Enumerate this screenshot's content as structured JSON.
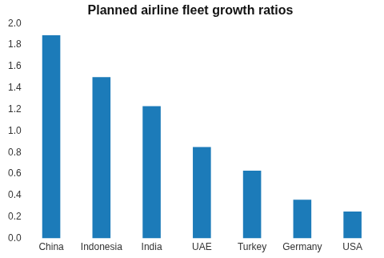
{
  "chart_data": {
    "type": "bar",
    "title": "Planned airline fleet growth ratios",
    "categories": [
      "China",
      "Indonesia",
      "India",
      "UAE",
      "Turkey",
      "Germany",
      "USA"
    ],
    "values": [
      1.89,
      1.5,
      1.23,
      0.85,
      0.63,
      0.36,
      0.25
    ],
    "color": "#1c7bb9",
    "ylim": [
      0,
      2
    ],
    "yticks": [
      {
        "value": 0,
        "label": "0.0"
      },
      0.2,
      0.4,
      0.6,
      0.8,
      {
        "value": 1,
        "label": "1.0"
      },
      1.2,
      1.4,
      1.6,
      1.8,
      {
        "value": 2,
        "label": "2.0"
      }
    ],
    "grid": false
  }
}
